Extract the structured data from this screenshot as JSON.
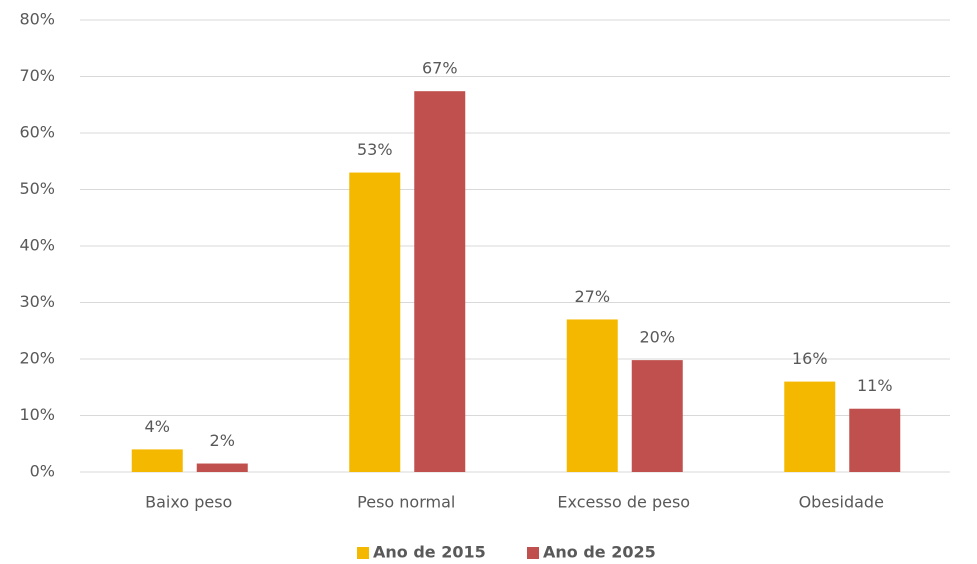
{
  "chart_data": {
    "type": "bar",
    "categories": [
      "Baixo peso",
      "Peso normal",
      "Excesso de peso",
      "Obesidade"
    ],
    "series": [
      {
        "name": "Ano de 2015",
        "color": "#f5b800",
        "values": [
          4,
          53,
          27,
          16
        ],
        "value_labels": [
          "4%",
          "53%",
          "27%",
          "16%"
        ]
      },
      {
        "name": "Ano de 2025",
        "color": "#c0504d",
        "values": [
          1.5,
          67.4,
          19.8,
          11.2
        ],
        "value_labels": [
          "2%",
          "67%",
          "20%",
          "11%"
        ]
      }
    ],
    "ylim": [
      0,
      80
    ],
    "yticks": [
      {
        "value": 0,
        "label": "0%"
      },
      {
        "value": 10,
        "label": "10%"
      },
      {
        "value": 20,
        "label": "20%"
      },
      {
        "value": 30,
        "label": "30%"
      },
      {
        "value": 40,
        "label": "40%"
      },
      {
        "value": 50,
        "label": "50%"
      },
      {
        "value": 60,
        "label": "60%"
      },
      {
        "value": 70,
        "label": "70%"
      },
      {
        "value": 80,
        "label": "80%"
      }
    ],
    "grid": true,
    "legend": "bottom"
  }
}
